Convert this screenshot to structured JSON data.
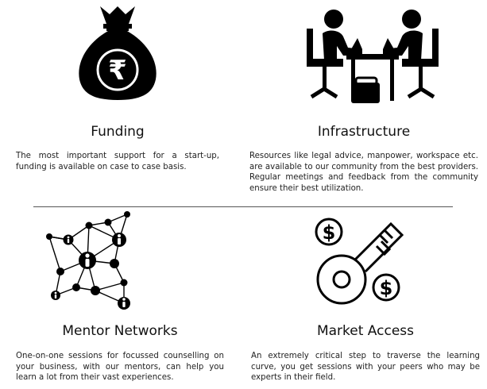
{
  "features": [
    {
      "icon": "money-bag-rupee-icon",
      "title": "Funding",
      "description": "The most important support for a start-up, funding is available on case to case basis."
    },
    {
      "icon": "meeting-table-icon",
      "title": "Infrastructure",
      "description": "Resources like legal advice, manpower, workspace etc. are available to our community from the best providers. Regular meetings and feedback from the community ensure their best utilization."
    },
    {
      "icon": "people-network-icon",
      "title": "Mentor Networks",
      "description": "One-on-one sessions for focussed counselling on your business, with our mentors, can help you learn a lot from their vast experiences."
    },
    {
      "icon": "key-dollar-icon",
      "title": "Market Access",
      "description": "An extremely critical step to traverse the learning curve, you get sessions with your peers who may be experts in their field."
    }
  ],
  "icon_glyphs": {
    "rupee": "₹",
    "dollar": "$"
  }
}
